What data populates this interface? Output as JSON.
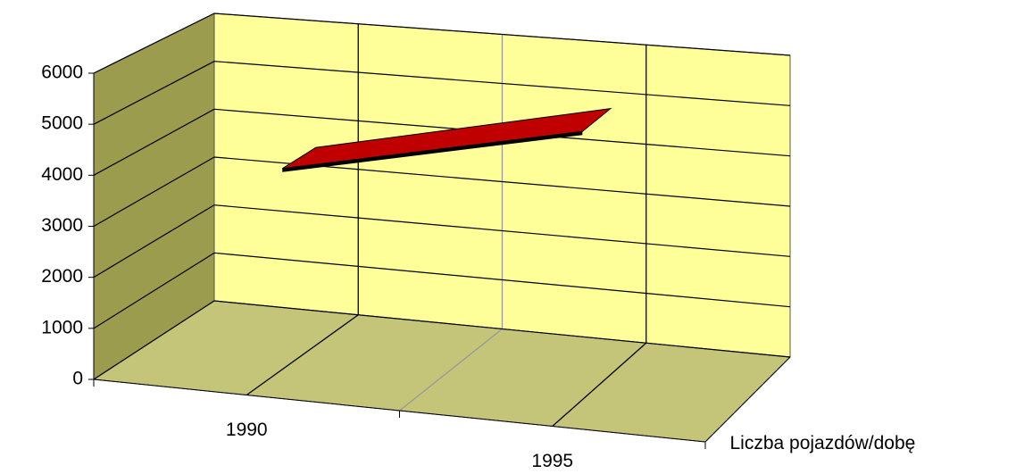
{
  "chart_data": {
    "type": "line",
    "categories": [
      "1990",
      "1995"
    ],
    "series": [
      {
        "name": "Liczba pojazdów/dobę",
        "color": "#c00000",
        "values": [
          4000,
          5300
        ]
      }
    ],
    "ylim": [
      0,
      6000
    ],
    "yticks": [
      0,
      1000,
      2000,
      3000,
      4000,
      5000,
      6000
    ],
    "grid": true
  }
}
